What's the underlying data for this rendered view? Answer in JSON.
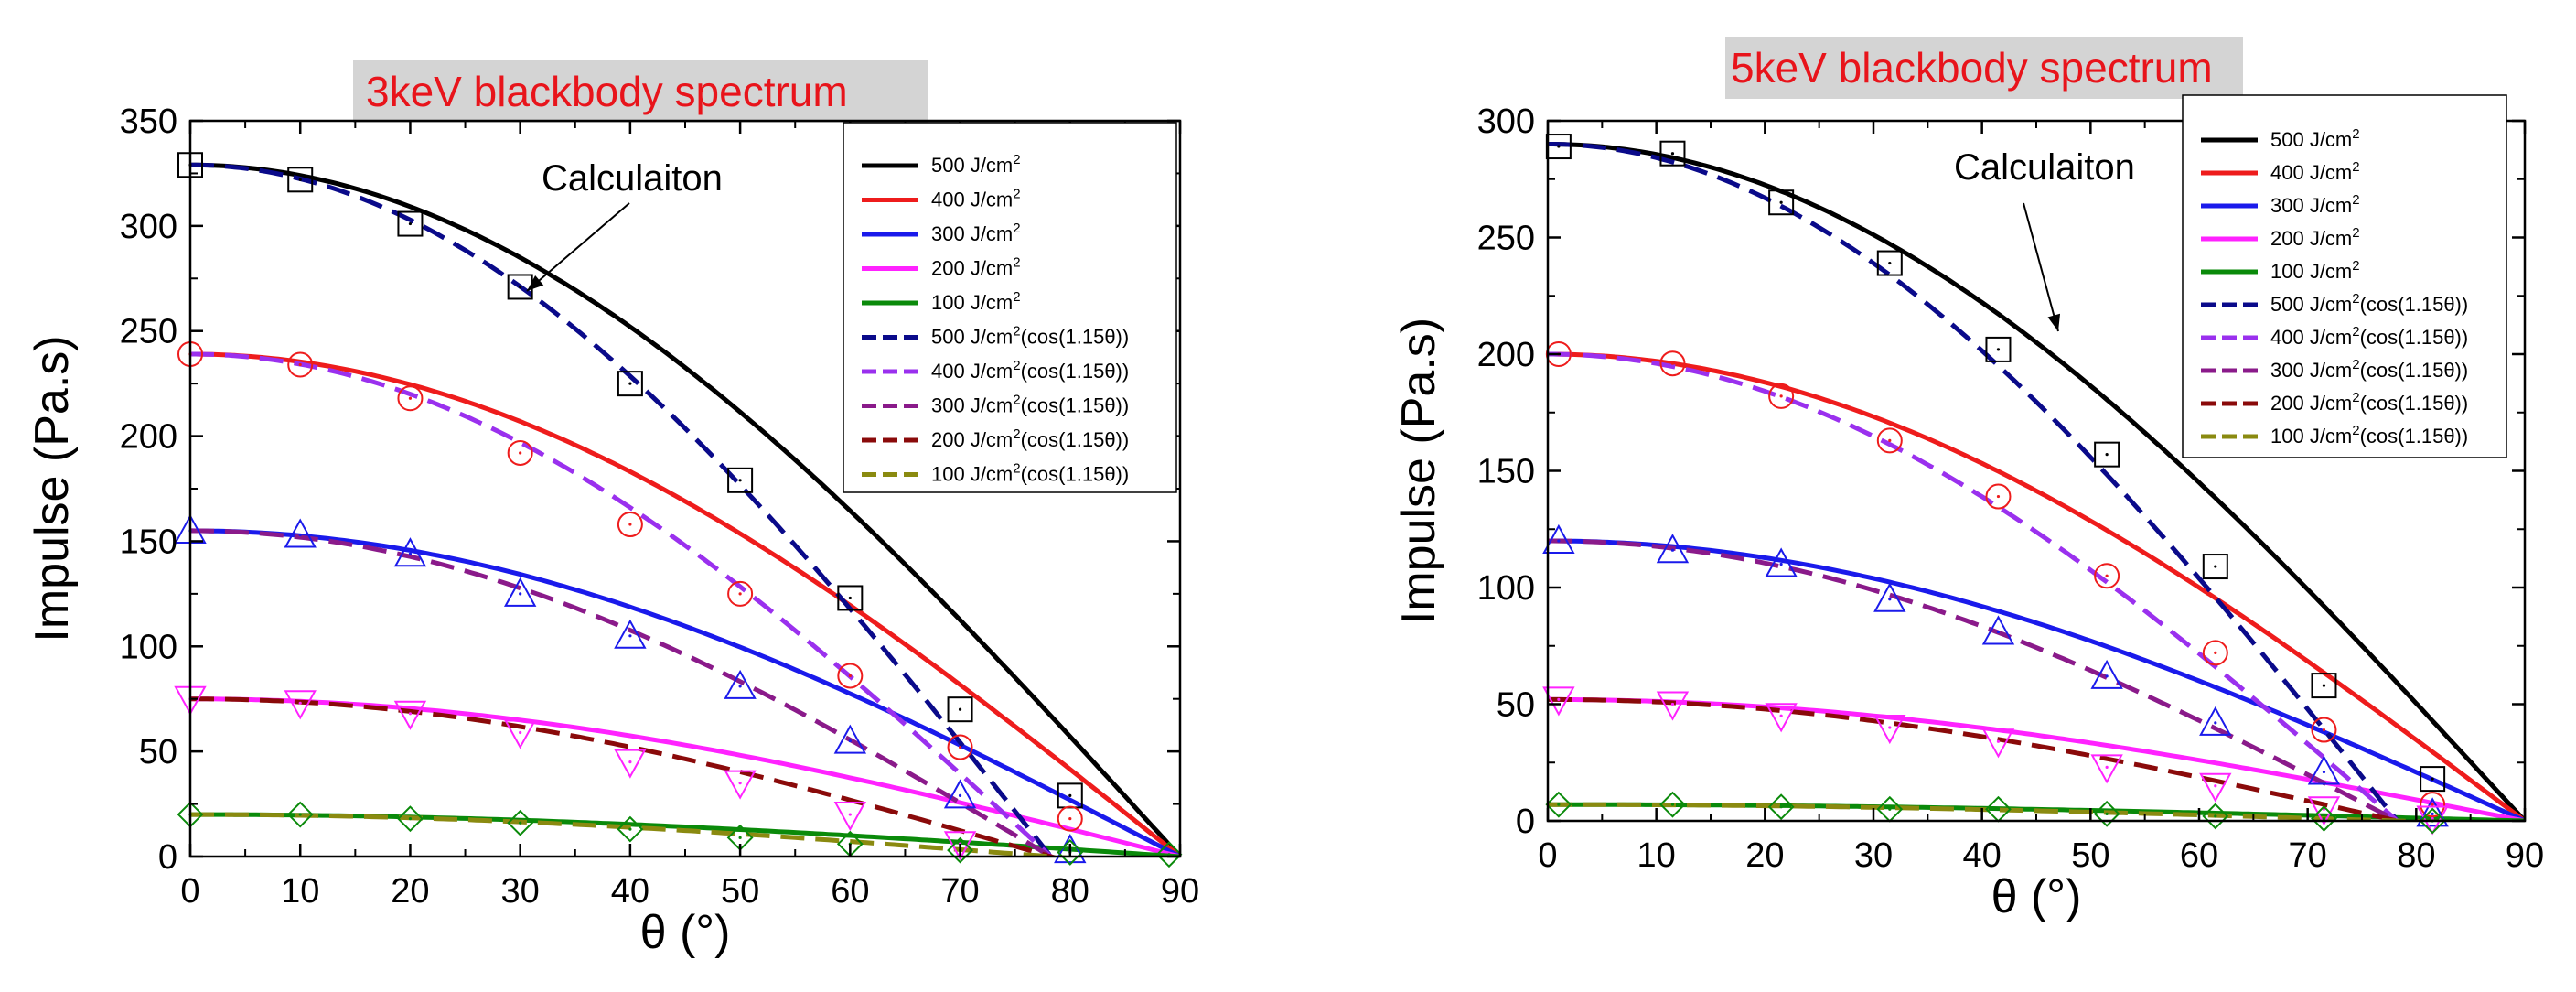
{
  "chart_data": [
    {
      "type": "line",
      "title": "3keV blackbody spectrum",
      "xlabel": "θ (°)",
      "ylabel": "Impulse (Pa.s)",
      "xlim": [
        0,
        90
      ],
      "ylim": [
        0,
        350
      ],
      "xticks": [
        0,
        10,
        20,
        30,
        40,
        50,
        60,
        70,
        80,
        90
      ],
      "yticks": [
        0,
        50,
        100,
        150,
        200,
        250,
        300,
        350
      ],
      "xtick_labels": [
        "0",
        "10",
        "20",
        "30",
        "40",
        "50",
        "60",
        "70",
        "80",
        "90"
      ],
      "ytick_labels": [
        "0",
        "50",
        "100",
        "150",
        "200",
        "250",
        "300",
        "350"
      ],
      "grid": false,
      "legend_position": "top-right",
      "annotation": "Calculaiton",
      "series": [
        {
          "name": "500",
          "unit": "J/cm",
          "sup": "2",
          "suffix": "",
          "style": "solid",
          "color": "#000000",
          "curve": "cos",
          "amplitude": 329
        },
        {
          "name": "400",
          "unit": "J/cm",
          "sup": "2",
          "suffix": "",
          "style": "solid",
          "color": "#ee1c1c",
          "curve": "cos",
          "amplitude": 239
        },
        {
          "name": "300",
          "unit": "J/cm",
          "sup": "2",
          "suffix": "",
          "style": "solid",
          "color": "#1a1aeb",
          "curve": "cos",
          "amplitude": 155
        },
        {
          "name": "200",
          "unit": "J/cm",
          "sup": "2",
          "suffix": "",
          "style": "solid",
          "color": "#ff22ff",
          "curve": "cos",
          "amplitude": 75
        },
        {
          "name": "100",
          "unit": "J/cm",
          "sup": "2",
          "suffix": "",
          "style": "solid",
          "color": "#0a8a0a",
          "curve": "cos",
          "amplitude": 20
        },
        {
          "name": "500",
          "unit": "J/cm",
          "sup": "2",
          "suffix": "(cos(1.15θ))",
          "style": "dash",
          "color": "#0a0a8a",
          "curve": "cos115",
          "amplitude": 329
        },
        {
          "name": "400",
          "unit": "J/cm",
          "sup": "2",
          "suffix": "(cos(1.15θ))",
          "style": "dash",
          "color": "#9a30ee",
          "curve": "cos115",
          "amplitude": 239
        },
        {
          "name": "300",
          "unit": "J/cm",
          "sup": "2",
          "suffix": "(cos(1.15θ))",
          "style": "dash",
          "color": "#8a1a8a",
          "curve": "cos115",
          "amplitude": 155
        },
        {
          "name": "200",
          "unit": "J/cm",
          "sup": "2",
          "suffix": "(cos(1.15θ))",
          "style": "dash",
          "color": "#8a0a0a",
          "curve": "cos115",
          "amplitude": 75
        },
        {
          "name": "100",
          "unit": "J/cm",
          "sup": "2",
          "suffix": "(cos(1.15θ))",
          "style": "dash",
          "color": "#8a8a10",
          "curve": "cos115",
          "amplitude": 20
        }
      ],
      "markers": [
        {
          "shape": "square",
          "color": "#000000",
          "x": [
            0,
            10,
            20,
            30,
            40,
            50,
            60,
            70,
            80
          ],
          "y": [
            329,
            322,
            301,
            271,
            225,
            179,
            123,
            70,
            29
          ]
        },
        {
          "shape": "circle",
          "color": "#ee1c1c",
          "x": [
            0,
            10,
            20,
            30,
            40,
            50,
            60,
            70,
            80
          ],
          "y": [
            239,
            234,
            218,
            192,
            158,
            125,
            86,
            52,
            18
          ]
        },
        {
          "shape": "triangle-up",
          "color": "#1a1aeb",
          "x": [
            0,
            10,
            20,
            30,
            40,
            50,
            60,
            70,
            80
          ],
          "y": [
            155,
            153,
            144,
            125,
            105,
            81,
            55,
            29,
            3
          ]
        },
        {
          "shape": "triangle-down",
          "color": "#ff22ff",
          "x": [
            0,
            10,
            20,
            30,
            40,
            50,
            60,
            70
          ],
          "y": [
            75,
            73,
            68,
            59,
            45,
            35,
            20,
            6
          ]
        },
        {
          "shape": "diamond",
          "color": "#0a8a0a",
          "x": [
            0,
            10,
            20,
            30,
            40,
            50,
            60,
            70,
            80,
            89
          ],
          "y": [
            20,
            20,
            18,
            16,
            13,
            9,
            6,
            3,
            2,
            1
          ]
        }
      ]
    },
    {
      "type": "line",
      "title": "5keV blackbody spectrum",
      "xlabel": "θ (°)",
      "ylabel": "Impulse (Pa.s)",
      "xlim": [
        0,
        90
      ],
      "ylim": [
        0,
        300
      ],
      "xticks": [
        0,
        10,
        20,
        30,
        40,
        50,
        60,
        70,
        80,
        90
      ],
      "yticks": [
        0,
        50,
        100,
        150,
        200,
        250,
        300
      ],
      "xtick_labels": [
        "0",
        "10",
        "20",
        "30",
        "40",
        "50",
        "60",
        "70",
        "80",
        "90"
      ],
      "ytick_labels": [
        "0",
        "50",
        "100",
        "150",
        "200",
        "250",
        "300"
      ],
      "grid": false,
      "legend_position": "top-right",
      "annotation": "Calculaiton",
      "series": [
        {
          "name": "500",
          "unit": "J/cm",
          "sup": "2",
          "suffix": "",
          "style": "solid",
          "color": "#000000",
          "curve": "cos",
          "amplitude": 290
        },
        {
          "name": "400",
          "unit": "J/cm",
          "sup": "2",
          "suffix": "",
          "style": "solid",
          "color": "#ee1c1c",
          "curve": "cos",
          "amplitude": 200
        },
        {
          "name": "300",
          "unit": "J/cm",
          "sup": "2",
          "suffix": "",
          "style": "solid",
          "color": "#1a1aeb",
          "curve": "cos",
          "amplitude": 120
        },
        {
          "name": "200",
          "unit": "J/cm",
          "sup": "2",
          "suffix": "",
          "style": "solid",
          "color": "#ff22ff",
          "curve": "cos",
          "amplitude": 52
        },
        {
          "name": "100",
          "unit": "J/cm",
          "sup": "2",
          "suffix": "",
          "style": "solid",
          "color": "#0a8a0a",
          "curve": "cos",
          "amplitude": 7
        },
        {
          "name": "500",
          "unit": "J/cm",
          "sup": "2",
          "suffix": "(cos(1.15θ))",
          "style": "dash",
          "color": "#0a0a8a",
          "curve": "cos115",
          "amplitude": 290
        },
        {
          "name": "400",
          "unit": "J/cm",
          "sup": "2",
          "suffix": "(cos(1.15θ))",
          "style": "dash",
          "color": "#9a30ee",
          "curve": "cos115",
          "amplitude": 200
        },
        {
          "name": "300",
          "unit": "J/cm",
          "sup": "2",
          "suffix": "(cos(1.15θ))",
          "style": "dash",
          "color": "#8a1a8a",
          "curve": "cos115",
          "amplitude": 120
        },
        {
          "name": "200",
          "unit": "J/cm",
          "sup": "2",
          "suffix": "(cos(1.15θ))",
          "style": "dash",
          "color": "#8a0a0a",
          "curve": "cos115",
          "amplitude": 52
        },
        {
          "name": "100",
          "unit": "J/cm",
          "sup": "2",
          "suffix": "(cos(1.15θ))",
          "style": "dash",
          "color": "#8a8a10",
          "curve": "cos115",
          "amplitude": 7
        }
      ],
      "markers": [
        {
          "shape": "square",
          "color": "#000000",
          "x": [
            1,
            11.5,
            21.5,
            31.5,
            41.5,
            51.5,
            61.5,
            71.5,
            81.5
          ],
          "y": [
            289,
            286,
            265,
            239,
            202,
            157,
            109,
            58,
            18
          ]
        },
        {
          "shape": "circle",
          "color": "#ee1c1c",
          "x": [
            1,
            11.5,
            21.5,
            31.5,
            41.5,
            51.5,
            61.5,
            71.5,
            81.5
          ],
          "y": [
            200,
            196,
            182,
            163,
            139,
            105,
            72,
            39,
            7
          ]
        },
        {
          "shape": "triangle-up",
          "color": "#1a1aeb",
          "x": [
            1,
            11.5,
            21.5,
            31.5,
            41.5,
            51.5,
            61.5,
            71.5,
            81.5
          ],
          "y": [
            120,
            116,
            110,
            95,
            81,
            62,
            42,
            21,
            3
          ]
        },
        {
          "shape": "triangle-down",
          "color": "#ff22ff",
          "x": [
            1,
            11.5,
            21.5,
            31.5,
            41.5,
            51.5,
            61.5,
            71.5,
            81.5
          ],
          "y": [
            52,
            50,
            45,
            40,
            34,
            23,
            15,
            5,
            1
          ]
        },
        {
          "shape": "diamond",
          "color": "#0a8a0a",
          "x": [
            1,
            11.5,
            21.5,
            31.5,
            41.5,
            51.5,
            61.5,
            71.5,
            81.5
          ],
          "y": [
            7,
            7,
            6,
            5,
            5,
            3,
            2,
            1,
            0
          ]
        }
      ]
    }
  ]
}
